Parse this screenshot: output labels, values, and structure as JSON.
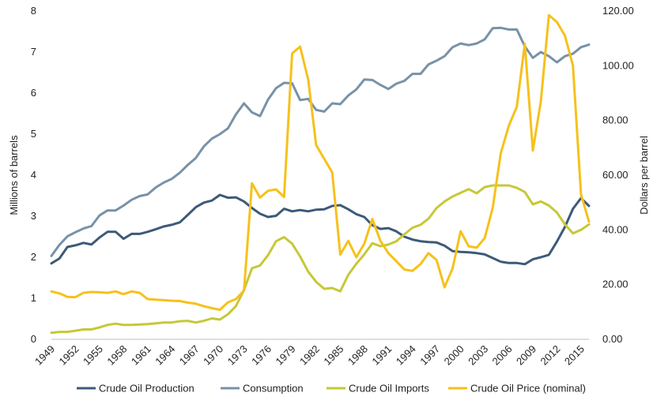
{
  "chart_data": {
    "type": "line",
    "title": "",
    "ylabel_left": "Millions of barrels",
    "ylabel_right": "Dollars per barrel",
    "ylim_left": [
      0,
      8
    ],
    "ylim_right": [
      0,
      120
    ],
    "yticks_left": [
      "0",
      "1",
      "2",
      "3",
      "4",
      "5",
      "6",
      "7",
      "8"
    ],
    "yticks_right": [
      "0.00",
      "20.00",
      "40.00",
      "60.00",
      "80.00",
      "100.00",
      "120.00"
    ],
    "xlim": [
      1949,
      2016
    ],
    "xticks": [
      "1949",
      "1952",
      "1955",
      "1958",
      "1961",
      "1964",
      "1967",
      "1970",
      "1973",
      "1976",
      "1979",
      "1982",
      "1985",
      "1988",
      "1991",
      "1994",
      "1997",
      "2000",
      "2003",
      "2006",
      "2009",
      "2012",
      "2015"
    ],
    "grid": false,
    "legend_position": "bottom",
    "series": [
      {
        "name": "Crude Oil Production",
        "axis": "left",
        "color": "#3d5a78",
        "x": [
          1949,
          1950,
          1951,
          1952,
          1953,
          1954,
          1955,
          1956,
          1957,
          1958,
          1959,
          1960,
          1961,
          1962,
          1963,
          1964,
          1965,
          1966,
          1967,
          1968,
          1969,
          1970,
          1971,
          1972,
          1973,
          1974,
          1975,
          1976,
          1977,
          1978,
          1979,
          1980,
          1981,
          1982,
          1983,
          1984,
          1985,
          1986,
          1987,
          1988,
          1989,
          1990,
          1991,
          1992,
          1993,
          1994,
          1995,
          1996,
          1997,
          1998,
          1999,
          2000,
          2001,
          2002,
          2003,
          2004,
          2005,
          2006,
          2007,
          2008,
          2009,
          2010,
          2011,
          2012,
          2013,
          2014,
          2015,
          2016
        ],
        "y": [
          1.85,
          1.97,
          2.25,
          2.29,
          2.35,
          2.31,
          2.48,
          2.62,
          2.62,
          2.45,
          2.57,
          2.57,
          2.62,
          2.68,
          2.75,
          2.79,
          2.85,
          3.03,
          3.22,
          3.33,
          3.38,
          3.52,
          3.45,
          3.46,
          3.36,
          3.2,
          3.06,
          2.98,
          3.01,
          3.18,
          3.12,
          3.15,
          3.12,
          3.16,
          3.17,
          3.25,
          3.27,
          3.17,
          3.05,
          2.98,
          2.78,
          2.69,
          2.71,
          2.63,
          2.5,
          2.43,
          2.39,
          2.37,
          2.36,
          2.28,
          2.15,
          2.13,
          2.12,
          2.1,
          2.07,
          1.98,
          1.89,
          1.86,
          1.86,
          1.83,
          1.95,
          2.0,
          2.06,
          2.38,
          2.74,
          3.18,
          3.44,
          3.25
        ]
      },
      {
        "name": "Consumption",
        "axis": "left",
        "color": "#7892a8",
        "x": [
          1949,
          1950,
          1951,
          1952,
          1953,
          1954,
          1955,
          1956,
          1957,
          1958,
          1959,
          1960,
          1961,
          1962,
          1963,
          1964,
          1965,
          1966,
          1967,
          1968,
          1969,
          1970,
          1971,
          1972,
          1973,
          1974,
          1975,
          1976,
          1977,
          1978,
          1979,
          1980,
          1981,
          1982,
          1983,
          1984,
          1985,
          1986,
          1987,
          1988,
          1989,
          1990,
          1991,
          1992,
          1993,
          1994,
          1995,
          1996,
          1997,
          1998,
          1999,
          2000,
          2001,
          2002,
          2003,
          2004,
          2005,
          2006,
          2007,
          2008,
          2009,
          2010,
          2011,
          2012,
          2013,
          2014,
          2015,
          2016
        ],
        "y": [
          2.03,
          2.3,
          2.51,
          2.61,
          2.7,
          2.76,
          3.02,
          3.14,
          3.14,
          3.26,
          3.4,
          3.49,
          3.53,
          3.7,
          3.82,
          3.91,
          4.06,
          4.25,
          4.42,
          4.7,
          4.89,
          5.0,
          5.14,
          5.48,
          5.75,
          5.53,
          5.44,
          5.84,
          6.12,
          6.25,
          6.24,
          5.83,
          5.86,
          5.59,
          5.55,
          5.75,
          5.73,
          5.94,
          6.09,
          6.33,
          6.32,
          6.2,
          6.1,
          6.23,
          6.3,
          6.47,
          6.47,
          6.7,
          6.79,
          6.9,
          7.12,
          7.21,
          7.17,
          7.21,
          7.31,
          7.58,
          7.59,
          7.55,
          7.55,
          7.14,
          6.86,
          7.0,
          6.9,
          6.75,
          6.9,
          6.96,
          7.12,
          7.18
        ]
      },
      {
        "name": "Crude Oil Imports",
        "axis": "left",
        "color": "#c6c838",
        "x": [
          1949,
          1950,
          1951,
          1952,
          1953,
          1954,
          1955,
          1956,
          1957,
          1958,
          1959,
          1960,
          1961,
          1962,
          1963,
          1964,
          1965,
          1966,
          1967,
          1968,
          1969,
          1970,
          1971,
          1972,
          1973,
          1974,
          1975,
          1976,
          1977,
          1978,
          1979,
          1980,
          1981,
          1982,
          1983,
          1984,
          1985,
          1986,
          1987,
          1988,
          1989,
          1990,
          1991,
          1992,
          1993,
          1994,
          1995,
          1996,
          1997,
          1998,
          1999,
          2000,
          2001,
          2002,
          2003,
          2004,
          2005,
          2006,
          2007,
          2008,
          2009,
          2010,
          2011,
          2012,
          2013,
          2014,
          2015,
          2016
        ],
        "y": [
          0.16,
          0.18,
          0.18,
          0.21,
          0.24,
          0.24,
          0.29,
          0.35,
          0.38,
          0.35,
          0.35,
          0.36,
          0.37,
          0.39,
          0.41,
          0.41,
          0.44,
          0.45,
          0.41,
          0.45,
          0.51,
          0.48,
          0.61,
          0.81,
          1.2,
          1.73,
          1.8,
          2.05,
          2.39,
          2.49,
          2.33,
          2.02,
          1.65,
          1.4,
          1.23,
          1.25,
          1.17,
          1.57,
          1.84,
          2.07,
          2.34,
          2.27,
          2.31,
          2.39,
          2.56,
          2.72,
          2.79,
          2.94,
          3.2,
          3.36,
          3.48,
          3.57,
          3.66,
          3.56,
          3.71,
          3.75,
          3.75,
          3.75,
          3.69,
          3.59,
          3.29,
          3.36,
          3.26,
          3.09,
          2.8,
          2.58,
          2.67,
          2.8
        ]
      },
      {
        "name": "Crude Oil Price (nominal)",
        "axis": "right",
        "color": "#f6c11b",
        "x": [
          1949,
          1950,
          1951,
          1952,
          1953,
          1954,
          1955,
          1956,
          1957,
          1958,
          1959,
          1960,
          1961,
          1962,
          1963,
          1964,
          1965,
          1966,
          1967,
          1968,
          1969,
          1970,
          1971,
          1972,
          1973,
          1974,
          1975,
          1976,
          1977,
          1978,
          1979,
          1980,
          1981,
          1982,
          1983,
          1984,
          1985,
          1986,
          1987,
          1988,
          1989,
          1990,
          1991,
          1992,
          1993,
          1994,
          1995,
          1996,
          1997,
          1998,
          1999,
          2000,
          2001,
          2002,
          2003,
          2004,
          2005,
          2006,
          2007,
          2008,
          2009,
          2010,
          2011,
          2012,
          2013,
          2014,
          2015,
          2016
        ],
        "y": [
          17.5,
          16.8,
          15.5,
          15.4,
          17.0,
          17.3,
          17.2,
          17.0,
          17.5,
          16.5,
          17.5,
          17.0,
          14.7,
          14.5,
          14.3,
          14.1,
          14.0,
          13.4,
          13.0,
          12.1,
          11.4,
          10.8,
          13.5,
          14.7,
          17.8,
          57.0,
          51.8,
          54.3,
          54.8,
          52.0,
          104.5,
          107.0,
          95.0,
          71.0,
          66.0,
          61.0,
          31.0,
          36.0,
          30.0,
          35.0,
          44.0,
          36.0,
          31.5,
          28.5,
          25.5,
          25.0,
          27.5,
          31.5,
          29.0,
          19.0,
          26.0,
          39.5,
          34.0,
          33.5,
          37.0,
          48.0,
          68.0,
          78.0,
          85.0,
          108.0,
          69.0,
          87.0,
          118.5,
          116.0,
          111.0,
          100.0,
          53.0,
          43.0
        ]
      }
    ]
  }
}
